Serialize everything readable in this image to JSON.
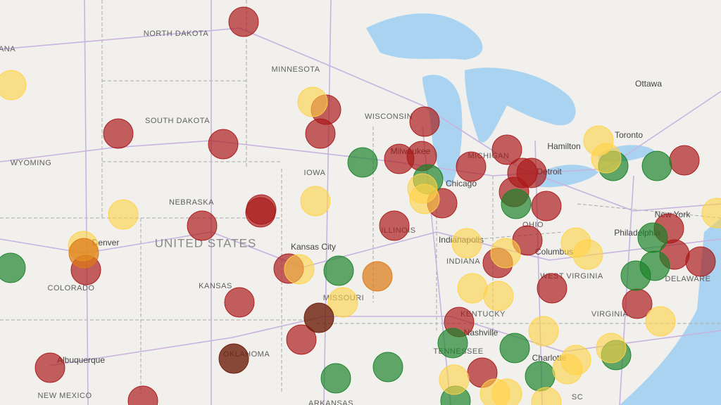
{
  "map": {
    "labels": [
      "ANA",
      "NORTH DAKOTA",
      "MINNESOTA",
      "SOUTH DAKOTA",
      "WISCONSIN",
      "WYOMING",
      "NEBRASKA",
      "IOWA",
      "UNITED STATES",
      "Denver",
      "COLORADO",
      "Kansas City",
      "KANSAS",
      "MISSOURI",
      "OKLAHOMA",
      "ARKANSAS",
      "Albuquerque",
      "NEW MEXICO",
      "Milwaukee",
      "MICHIGAN",
      "Chicago",
      "Detroit",
      "ILLINOIS",
      "Indianapolis",
      "INDIANA",
      "OHIO",
      "Columbus",
      "WEST VIRGINIA",
      "VIRGINIA",
      "KENTUCKY",
      "Nashville",
      "TENNESSEE",
      "Charlotte",
      "SC",
      "Hamilton",
      "Toronto",
      "Ottawa",
      "New York",
      "Philadelphia",
      "DELAWARE"
    ]
  }
}
